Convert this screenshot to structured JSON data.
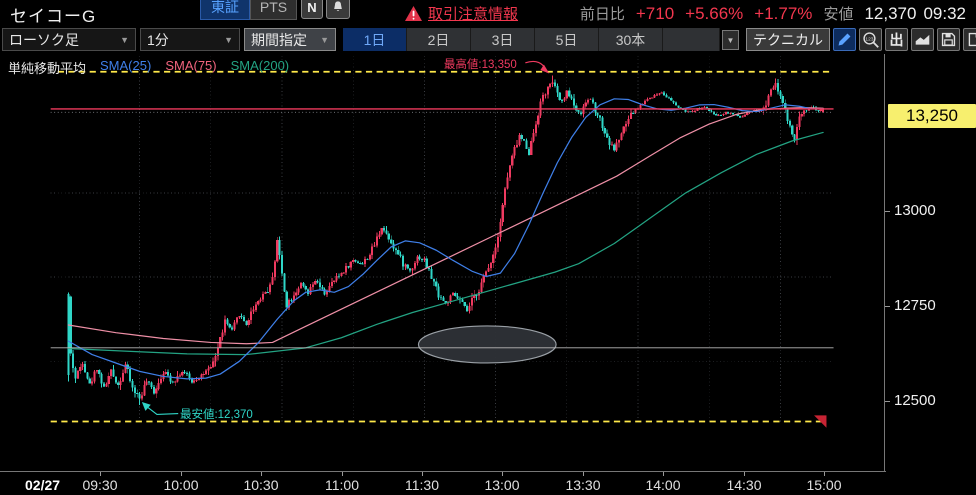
{
  "header": {
    "symbol_name": "セイコーG",
    "market_tabs": [
      {
        "label": "東証",
        "active": true
      },
      {
        "label": "PTS",
        "active": false
      }
    ],
    "news_button": "N",
    "warning_link": "取引注意情報",
    "prev_day_label": "前日比",
    "change_value": "+710",
    "change_percent": "+5.66%",
    "change_percent2": "+1.77%",
    "low_label": "安値",
    "low_value": "12,370",
    "low_time": "09:32"
  },
  "toolbar": {
    "chart_type_value": "ローソク足",
    "interval_value": "1分",
    "period_label": "期間指定",
    "range_tabs": [
      {
        "label": "1日",
        "active": true
      },
      {
        "label": "2日",
        "active": false
      },
      {
        "label": "3日",
        "active": false
      },
      {
        "label": "5日",
        "active": false
      },
      {
        "label": "30本",
        "active": false
      }
    ],
    "technical_label": "テクニカル",
    "export_glyph": "出",
    "icons": [
      "pencil-icon",
      "zoom-123-icon",
      "export-icon",
      "area-chart-icon",
      "save-icon",
      "clipboard-icon"
    ]
  },
  "legend": {
    "title": "単純移動平均",
    "sma25": "SMA(25)",
    "sma75": "SMA(75)",
    "sma200": "SMA(200)"
  },
  "annotations": {
    "high_label": "最高値:13,350",
    "low_label": "最安値:12,370",
    "current_price": "13,250"
  },
  "colors": {
    "up": "#ef3a60",
    "down": "#2fd6c7",
    "sma25": "#3f7fe8",
    "sma75": "#ee8fa6",
    "sma200": "#23a383",
    "accent_red": "#f2374e",
    "price_label_bg": "#f7ef6e",
    "high_low_line": "#ffe94a",
    "current_line": "#ef3b5d",
    "prev_close_line": "#b8b8b8",
    "grid": "#3a3d42"
  },
  "chart_data": {
    "type": "candlestick",
    "interval": "1min",
    "minutes": 318,
    "session": {
      "open": 12700,
      "high": 13350,
      "low": 12370,
      "last": 13250,
      "prev_close": 12540
    },
    "dotted_ref_price": 13240,
    "y_ticks": [
      13000,
      12750,
      12500
    ],
    "time_ticks": [
      {
        "m": 8.5,
        "label": "02/27",
        "date": true
      },
      {
        "m": 30,
        "label": "09:30"
      },
      {
        "m": 60,
        "label": "10:00"
      },
      {
        "m": 90,
        "label": "10:30"
      },
      {
        "m": 120,
        "label": "11:00"
      },
      {
        "m": 150,
        "label": "11:30"
      },
      {
        "m": 180,
        "label": "13:00"
      },
      {
        "m": 210,
        "label": "13:30"
      },
      {
        "m": 240,
        "label": "14:00"
      },
      {
        "m": 270,
        "label": "14:30"
      },
      {
        "m": 300,
        "label": "15:00"
      }
    ],
    "price_path": [
      [
        0,
        12690
      ],
      [
        1,
        12520
      ],
      [
        3,
        12450
      ],
      [
        6,
        12500
      ],
      [
        9,
        12430
      ],
      [
        12,
        12480
      ],
      [
        15,
        12420
      ],
      [
        18,
        12470
      ],
      [
        21,
        12430
      ],
      [
        24,
        12490
      ],
      [
        27,
        12420
      ],
      [
        30,
        12390
      ],
      [
        33,
        12440
      ],
      [
        36,
        12410
      ],
      [
        40,
        12470
      ],
      [
        44,
        12440
      ],
      [
        48,
        12470
      ],
      [
        52,
        12440
      ],
      [
        56,
        12460
      ],
      [
        60,
        12475
      ],
      [
        63,
        12540
      ],
      [
        66,
        12620
      ],
      [
        69,
        12590
      ],
      [
        72,
        12640
      ],
      [
        75,
        12610
      ],
      [
        78,
        12660
      ],
      [
        82,
        12700
      ],
      [
        85,
        12720
      ],
      [
        87,
        12800
      ],
      [
        88,
        12860
      ],
      [
        90,
        12760
      ],
      [
        92,
        12670
      ],
      [
        95,
        12700
      ],
      [
        98,
        12730
      ],
      [
        101,
        12700
      ],
      [
        104,
        12740
      ],
      [
        108,
        12700
      ],
      [
        112,
        12740
      ],
      [
        116,
        12770
      ],
      [
        120,
        12800
      ],
      [
        124,
        12790
      ],
      [
        128,
        12830
      ],
      [
        132,
        12900
      ],
      [
        135,
        12870
      ],
      [
        138,
        12830
      ],
      [
        141,
        12790
      ],
      [
        144,
        12770
      ],
      [
        147,
        12810
      ],
      [
        150,
        12800
      ],
      [
        153,
        12750
      ],
      [
        156,
        12700
      ],
      [
        159,
        12670
      ],
      [
        162,
        12700
      ],
      [
        165,
        12680
      ],
      [
        168,
        12650
      ],
      [
        171,
        12690
      ],
      [
        174,
        12730
      ],
      [
        177,
        12780
      ],
      [
        180,
        12840
      ],
      [
        182,
        12920
      ],
      [
        184,
        13010
      ],
      [
        186,
        13080
      ],
      [
        188,
        13130
      ],
      [
        190,
        13170
      ],
      [
        192,
        13150
      ],
      [
        194,
        13120
      ],
      [
        196,
        13180
      ],
      [
        198,
        13240
      ],
      [
        200,
        13290
      ],
      [
        202,
        13310
      ],
      [
        204,
        13330
      ],
      [
        206,
        13290
      ],
      [
        208,
        13270
      ],
      [
        210,
        13300
      ],
      [
        212,
        13280
      ],
      [
        214,
        13250
      ],
      [
        216,
        13230
      ],
      [
        218,
        13270
      ],
      [
        220,
        13280
      ],
      [
        222,
        13250
      ],
      [
        224,
        13220
      ],
      [
        226,
        13180
      ],
      [
        228,
        13150
      ],
      [
        230,
        13130
      ],
      [
        232,
        13160
      ],
      [
        234,
        13190
      ],
      [
        236,
        13220
      ],
      [
        238,
        13240
      ],
      [
        241,
        13260
      ],
      [
        244,
        13280
      ],
      [
        247,
        13290
      ],
      [
        250,
        13300
      ],
      [
        253,
        13280
      ],
      [
        256,
        13260
      ],
      [
        259,
        13245
      ],
      [
        262,
        13240
      ],
      [
        265,
        13250
      ],
      [
        268,
        13255
      ],
      [
        271,
        13240
      ],
      [
        274,
        13230
      ],
      [
        277,
        13240
      ],
      [
        280,
        13235
      ],
      [
        283,
        13225
      ],
      [
        286,
        13235
      ],
      [
        289,
        13245
      ],
      [
        290,
        13240
      ],
      [
        293,
        13250
      ],
      [
        296,
        13310
      ],
      [
        298,
        13330
      ],
      [
        300,
        13290
      ],
      [
        302,
        13240
      ],
      [
        304,
        13190
      ],
      [
        306,
        13160
      ],
      [
        308,
        13220
      ],
      [
        310,
        13250
      ],
      [
        313,
        13255
      ],
      [
        316,
        13245
      ],
      [
        318,
        13250
      ]
    ],
    "wick_anchors": [
      {
        "m": 30,
        "low": 12370
      },
      {
        "m": 88,
        "high": 12870
      },
      {
        "m": 204,
        "high": 13350
      },
      {
        "m": 298,
        "high": 13340
      },
      {
        "m": 306,
        "low": 13150
      }
    ],
    "sma25": [
      [
        0,
        12560
      ],
      [
        10,
        12520
      ],
      [
        20,
        12495
      ],
      [
        30,
        12470
      ],
      [
        40,
        12455
      ],
      [
        50,
        12448
      ],
      [
        58,
        12450
      ],
      [
        64,
        12462
      ],
      [
        72,
        12500
      ],
      [
        80,
        12555
      ],
      [
        88,
        12625
      ],
      [
        95,
        12680
      ],
      [
        100,
        12705
      ],
      [
        106,
        12712
      ],
      [
        112,
        12705
      ],
      [
        118,
        12722
      ],
      [
        124,
        12758
      ],
      [
        130,
        12800
      ],
      [
        136,
        12840
      ],
      [
        142,
        12858
      ],
      [
        148,
        12852
      ],
      [
        155,
        12830
      ],
      [
        162,
        12800
      ],
      [
        170,
        12768
      ],
      [
        176,
        12752
      ],
      [
        182,
        12762
      ],
      [
        188,
        12820
      ],
      [
        194,
        12905
      ],
      [
        200,
        13000
      ],
      [
        206,
        13090
      ],
      [
        212,
        13165
      ],
      [
        218,
        13225
      ],
      [
        224,
        13262
      ],
      [
        230,
        13280
      ],
      [
        236,
        13278
      ],
      [
        242,
        13262
      ],
      [
        248,
        13250
      ],
      [
        254,
        13246
      ],
      [
        260,
        13252
      ],
      [
        266,
        13262
      ],
      [
        272,
        13263
      ],
      [
        278,
        13255
      ],
      [
        284,
        13245
      ],
      [
        290,
        13242
      ],
      [
        296,
        13252
      ],
      [
        302,
        13262
      ],
      [
        308,
        13258
      ],
      [
        313,
        13250
      ],
      [
        318,
        13250
      ]
    ],
    "sma75": [
      [
        0,
        12608
      ],
      [
        20,
        12585
      ],
      [
        40,
        12568
      ],
      [
        60,
        12556
      ],
      [
        75,
        12552
      ],
      [
        86,
        12556
      ],
      [
        100,
        12604
      ],
      [
        120,
        12672
      ],
      [
        140,
        12740
      ],
      [
        160,
        12808
      ],
      [
        180,
        12876
      ],
      [
        200,
        12944
      ],
      [
        215,
        12995
      ],
      [
        231,
        13050
      ],
      [
        245,
        13110
      ],
      [
        258,
        13165
      ],
      [
        270,
        13205
      ],
      [
        282,
        13235
      ],
      [
        292,
        13248
      ],
      [
        302,
        13252
      ],
      [
        310,
        13254
      ],
      [
        318,
        13252
      ]
    ],
    "sma200": [
      [
        0,
        12538
      ],
      [
        25,
        12530
      ],
      [
        50,
        12522
      ],
      [
        75,
        12520
      ],
      [
        100,
        12540
      ],
      [
        115,
        12570
      ],
      [
        130,
        12610
      ],
      [
        145,
        12645
      ],
      [
        160,
        12675
      ],
      [
        175,
        12705
      ],
      [
        190,
        12735
      ],
      [
        205,
        12765
      ],
      [
        215,
        12790
      ],
      [
        230,
        12850
      ],
      [
        245,
        12925
      ],
      [
        260,
        13000
      ],
      [
        275,
        13060
      ],
      [
        290,
        13115
      ],
      [
        305,
        13155
      ],
      [
        318,
        13180
      ]
    ],
    "ellipse_drawing": {
      "m": 176.5,
      "price": 12550,
      "rx_min": 29,
      "ry_yen": 55
    }
  }
}
